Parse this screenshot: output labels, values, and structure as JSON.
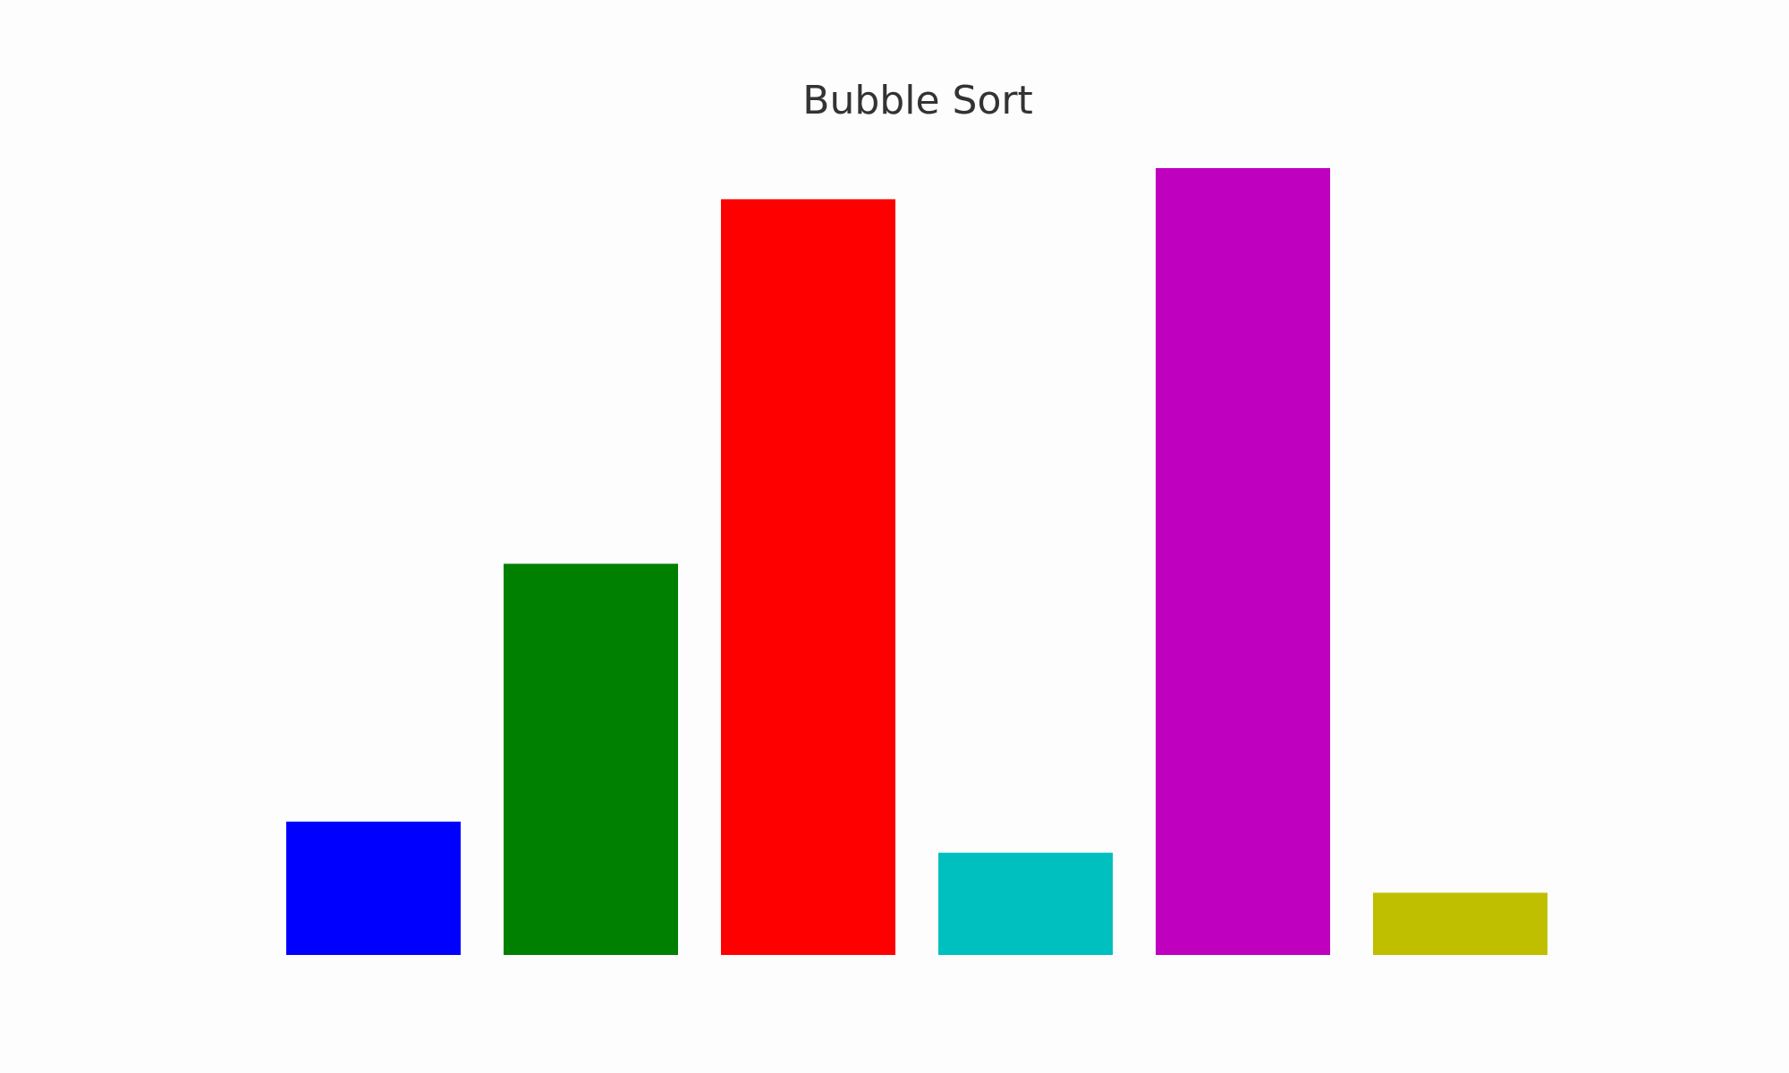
{
  "chart_data": {
    "type": "bar",
    "title": "Bubble Sort",
    "categories": [
      "",
      "",
      "",
      "",
      "",
      ""
    ],
    "values": [
      15,
      44,
      85,
      11.5,
      88.5,
      7
    ],
    "colors": [
      "#0000ff",
      "#008000",
      "#ff0000",
      "#00bfbf",
      "#bf00bf",
      "#bfbf00"
    ],
    "ylim": [
      0,
      88.5
    ],
    "grid": false,
    "axes_visible": false,
    "legend": "none"
  }
}
